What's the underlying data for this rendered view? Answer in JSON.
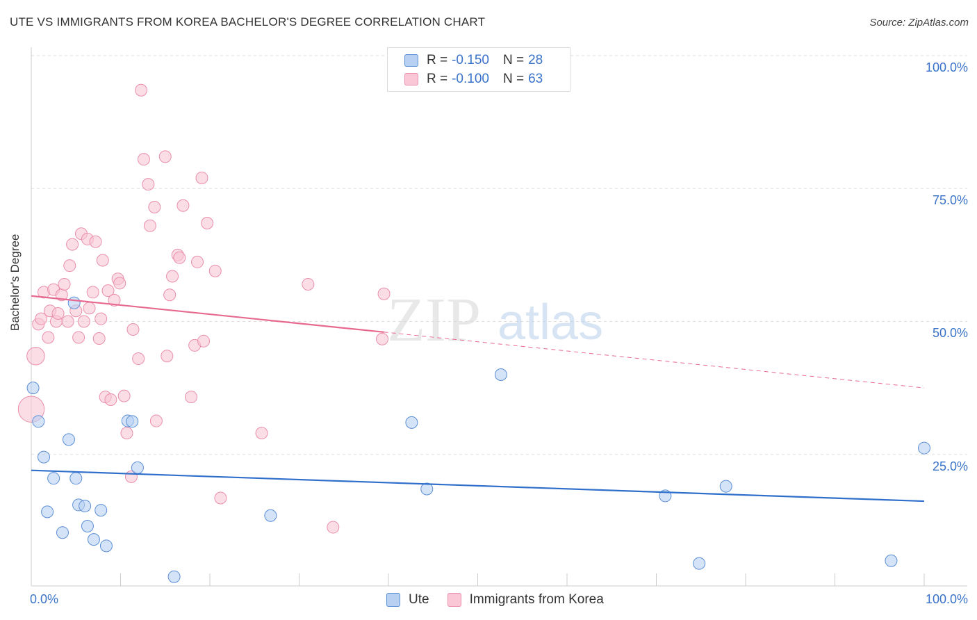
{
  "title": "UTE VS IMMIGRANTS FROM KOREA BACHELOR'S DEGREE CORRELATION CHART",
  "source": "Source: ZipAtlas.com",
  "watermark": {
    "zip": "ZIP",
    "atlas": "atlas"
  },
  "legend_top": {
    "rows": [
      {
        "r_label": "R =",
        "r_value": "-0.150",
        "n_label": "N =",
        "n_value": "28"
      },
      {
        "r_label": "R =",
        "r_value": "-0.100",
        "n_label": "N =",
        "n_value": "63"
      }
    ]
  },
  "colors": {
    "ute_fill": "#b8d1f2",
    "ute_stroke": "#5b8fd6",
    "ute_line": "#2f6fcb",
    "korea_fill": "#f9c7d6",
    "korea_stroke": "#ea8fac",
    "korea_line": "#e8698f",
    "grid": "#dddddd",
    "axis_label": "#3a73c9"
  },
  "chart_data": {
    "type": "scatter",
    "title": "UTE VS IMMIGRANTS FROM KOREA BACHELOR'S DEGREE CORRELATION CHART",
    "xlabel": "",
    "ylabel": "Bachelor's Degree",
    "xlim": [
      0,
      100
    ],
    "ylim": [
      0,
      100
    ],
    "x_tick_labels": [
      "0.0%",
      "100.0%"
    ],
    "y_tick_labels": [
      "100.0%",
      "75.0%",
      "50.0%",
      "25.0%"
    ],
    "y_ticks": [
      100,
      75,
      50,
      25
    ],
    "legend_position": "bottom",
    "series": [
      {
        "name": "Ute",
        "r": -0.15,
        "n": 28,
        "trend": {
          "x0": 0,
          "y0": 22.0,
          "x1": 100,
          "y1": 16.2
        },
        "points": [
          [
            0.2,
            37.5,
            1
          ],
          [
            0.8,
            31.2,
            1
          ],
          [
            1.4,
            24.5,
            1
          ],
          [
            1.8,
            14.2,
            1
          ],
          [
            2.5,
            20.5,
            1
          ],
          [
            3.5,
            10.3,
            1
          ],
          [
            4.2,
            27.8,
            1
          ],
          [
            5.0,
            20.5,
            1
          ],
          [
            5.3,
            15.5,
            1
          ],
          [
            6.0,
            15.3,
            1
          ],
          [
            6.3,
            11.5,
            1
          ],
          [
            7.0,
            9.0,
            1
          ],
          [
            7.8,
            14.5,
            1
          ],
          [
            8.4,
            7.8,
            1
          ],
          [
            10.8,
            31.3,
            1
          ],
          [
            11.3,
            31.2,
            1
          ],
          [
            11.9,
            22.5,
            1
          ],
          [
            4.8,
            53.5,
            1
          ],
          [
            16.0,
            2.0,
            1
          ],
          [
            26.8,
            13.5,
            1
          ],
          [
            42.6,
            31.0,
            1
          ],
          [
            44.3,
            18.5,
            1
          ],
          [
            52.6,
            40.0,
            1
          ],
          [
            71.0,
            17.2,
            1
          ],
          [
            74.8,
            4.5,
            1
          ],
          [
            77.8,
            19.0,
            1
          ],
          [
            96.3,
            5.0,
            1
          ],
          [
            100.0,
            26.2,
            1
          ]
        ]
      },
      {
        "name": "Immigrants from Korea",
        "r": -0.1,
        "n": 63,
        "trend": {
          "x0": 0,
          "y0": 54.8,
          "x1": 39.5,
          "y1": 48.0,
          "dash_x1": 100,
          "dash_y1": 37.5
        },
        "points": [
          [
            0.0,
            33.5,
            2.2
          ],
          [
            0.5,
            43.5,
            1.5
          ],
          [
            0.8,
            49.5,
            1
          ],
          [
            1.1,
            50.5,
            1
          ],
          [
            1.4,
            55.5,
            1
          ],
          [
            1.9,
            47.0,
            1
          ],
          [
            2.1,
            52.0,
            1
          ],
          [
            2.5,
            56.0,
            1
          ],
          [
            2.8,
            50.0,
            1
          ],
          [
            3.0,
            51.5,
            1
          ],
          [
            3.4,
            55.0,
            1
          ],
          [
            3.7,
            57.0,
            1
          ],
          [
            4.1,
            50.0,
            1
          ],
          [
            4.3,
            60.5,
            1
          ],
          [
            4.6,
            64.5,
            1
          ],
          [
            5.0,
            52.0,
            1
          ],
          [
            5.3,
            47.0,
            1
          ],
          [
            5.6,
            66.5,
            1
          ],
          [
            5.9,
            50.0,
            1
          ],
          [
            6.3,
            65.5,
            1
          ],
          [
            6.5,
            52.5,
            1
          ],
          [
            6.9,
            55.5,
            1
          ],
          [
            7.2,
            65.0,
            1
          ],
          [
            7.6,
            46.8,
            1
          ],
          [
            7.8,
            50.5,
            1
          ],
          [
            8.0,
            61.5,
            1
          ],
          [
            8.3,
            35.8,
            1
          ],
          [
            8.6,
            55.8,
            1
          ],
          [
            8.9,
            35.3,
            1
          ],
          [
            9.3,
            54.0,
            1
          ],
          [
            9.7,
            58.0,
            1
          ],
          [
            9.9,
            57.2,
            1
          ],
          [
            10.4,
            36.0,
            1
          ],
          [
            10.7,
            29.0,
            1
          ],
          [
            11.2,
            20.8,
            1
          ],
          [
            11.4,
            48.5,
            1
          ],
          [
            12.0,
            43.0,
            1
          ],
          [
            12.3,
            93.5,
            1
          ],
          [
            12.6,
            80.5,
            1
          ],
          [
            13.1,
            75.8,
            1
          ],
          [
            13.3,
            68.0,
            1
          ],
          [
            13.8,
            71.5,
            1
          ],
          [
            14.0,
            31.3,
            1
          ],
          [
            15.0,
            81.0,
            1
          ],
          [
            15.2,
            43.5,
            1
          ],
          [
            15.5,
            55.0,
            1
          ],
          [
            15.8,
            58.5,
            1
          ],
          [
            16.4,
            62.5,
            1
          ],
          [
            16.6,
            62.0,
            1
          ],
          [
            17.0,
            71.8,
            1
          ],
          [
            17.9,
            35.8,
            1
          ],
          [
            18.3,
            45.5,
            1
          ],
          [
            18.6,
            61.2,
            1
          ],
          [
            19.1,
            77.0,
            1
          ],
          [
            19.3,
            46.3,
            1
          ],
          [
            19.7,
            68.5,
            1
          ],
          [
            20.6,
            59.5,
            1
          ],
          [
            21.2,
            16.8,
            1
          ],
          [
            25.8,
            29.0,
            1
          ],
          [
            31.0,
            57.0,
            1
          ],
          [
            33.8,
            11.3,
            1
          ],
          [
            39.3,
            46.7,
            1
          ],
          [
            39.5,
            55.2,
            1
          ]
        ]
      }
    ]
  },
  "legend_bottom": {
    "items": [
      {
        "label": "Ute"
      },
      {
        "label": "Immigrants from Korea"
      }
    ]
  }
}
